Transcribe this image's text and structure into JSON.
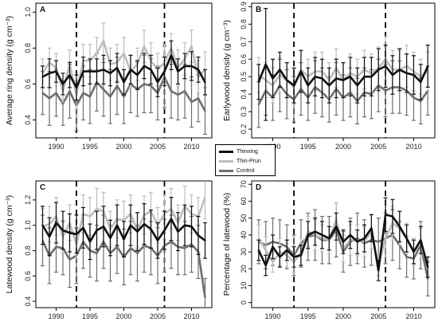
{
  "colors": {
    "Thinning": "#111111",
    "Thin-Prun": "#bdbdbd",
    "Control": "#6e6e6e"
  },
  "legend": {
    "items": [
      "Thinning",
      "Thin-Prun",
      "Control"
    ]
  },
  "chart_data": [
    {
      "type": "line",
      "panel": "A",
      "ylabel": "Average ring density (g cm⁻³)",
      "ylim": [
        0.3,
        1.05
      ],
      "yticks": [
        "0.4",
        "0.6",
        "0.8",
        "1.0"
      ],
      "xlim": [
        1987,
        2013
      ],
      "xticks": [
        "1990",
        "1995",
        "2000",
        "2005",
        "2010"
      ],
      "vlines": [
        1993,
        2006
      ],
      "x": [
        1988,
        1989,
        1990,
        1991,
        1992,
        1993,
        1994,
        1995,
        1996,
        1997,
        1998,
        1999,
        2000,
        2001,
        2002,
        2003,
        2004,
        2005,
        2006,
        2007,
        2008,
        2009,
        2010,
        2011,
        2012
      ],
      "series": [
        {
          "name": "Thinning",
          "values": [
            0.64,
            0.66,
            0.67,
            0.6,
            0.65,
            0.58,
            0.67,
            0.67,
            0.67,
            0.68,
            0.66,
            0.69,
            0.61,
            0.68,
            0.65,
            0.7,
            0.68,
            0.61,
            0.67,
            0.76,
            0.67,
            0.7,
            0.7,
            0.68,
            0.61
          ],
          "err": [
            0.06,
            0.08,
            0.06,
            0.06,
            0.07,
            0.07,
            0.08,
            0.07,
            0.07,
            0.08,
            0.07,
            0.08,
            0.07,
            0.08,
            0.08,
            0.07,
            0.08,
            0.08,
            0.08,
            0.08,
            0.07,
            0.07,
            0.08,
            0.07,
            0.07
          ]
        },
        {
          "name": "Thin-Prun",
          "values": [
            0.66,
            0.72,
            0.69,
            0.56,
            0.71,
            0.54,
            0.73,
            0.73,
            0.77,
            0.84,
            0.71,
            0.72,
            0.77,
            0.67,
            0.71,
            0.81,
            0.73,
            0.68,
            0.72,
            0.8,
            0.69,
            0.74,
            0.81,
            0.64,
            0.68
          ],
          "err": [
            0.08,
            0.08,
            0.08,
            0.06,
            0.08,
            0.08,
            0.09,
            0.09,
            0.09,
            0.1,
            0.09,
            0.1,
            0.09,
            0.09,
            0.09,
            0.09,
            0.1,
            0.09,
            0.1,
            0.08,
            0.1,
            0.09,
            0.09,
            0.09,
            0.1
          ]
        },
        {
          "name": "Control",
          "values": [
            0.55,
            0.52,
            0.55,
            0.49,
            0.56,
            0.48,
            0.55,
            0.53,
            0.61,
            0.57,
            0.53,
            0.59,
            0.53,
            0.6,
            0.57,
            0.6,
            0.59,
            0.55,
            0.64,
            0.56,
            0.54,
            0.56,
            0.5,
            0.52,
            0.45
          ],
          "err": [
            0.12,
            0.15,
            0.13,
            0.12,
            0.15,
            0.14,
            0.15,
            0.15,
            0.16,
            0.15,
            0.15,
            0.16,
            0.15,
            0.16,
            0.15,
            0.16,
            0.15,
            0.15,
            0.17,
            0.15,
            0.14,
            0.15,
            0.14,
            0.13,
            0.13
          ]
        }
      ]
    },
    {
      "type": "line",
      "panel": "B",
      "ylabel": "Earlywood density (g cm⁻³)",
      "ylim": [
        0.15,
        0.92
      ],
      "yticks": [
        "0.2",
        "0.3",
        "0.4",
        "0.5",
        "0.6",
        "0.7",
        "0.8",
        "0.9"
      ],
      "xlim": [
        1987,
        2013
      ],
      "xticks": [
        "1990",
        "1995",
        "2000",
        "2005",
        "2010"
      ],
      "vlines": [
        1993,
        2006
      ],
      "x": [
        1988,
        1989,
        1990,
        1991,
        1992,
        1993,
        1994,
        1995,
        1996,
        1997,
        1998,
        1999,
        2000,
        2001,
        2002,
        2003,
        2004,
        2005,
        2006,
        2007,
        2008,
        2009,
        2010,
        2011,
        2012
      ],
      "series": [
        {
          "name": "Thinning",
          "values": [
            0.47,
            0.57,
            0.49,
            0.54,
            0.48,
            0.45,
            0.53,
            0.45,
            0.5,
            0.49,
            0.45,
            0.49,
            0.48,
            0.5,
            0.45,
            0.5,
            0.5,
            0.54,
            0.56,
            0.51,
            0.54,
            0.52,
            0.51,
            0.47,
            0.56
          ],
          "err": [
            0.1,
            0.32,
            0.11,
            0.1,
            0.1,
            0.1,
            0.12,
            0.1,
            0.11,
            0.11,
            0.1,
            0.11,
            0.1,
            0.11,
            0.1,
            0.11,
            0.11,
            0.12,
            0.12,
            0.11,
            0.12,
            0.11,
            0.11,
            0.1,
            0.12
          ]
        },
        {
          "name": "Thin-Prun",
          "values": [
            0.51,
            0.48,
            0.45,
            0.51,
            0.48,
            0.44,
            0.54,
            0.5,
            0.53,
            0.53,
            0.48,
            0.55,
            0.48,
            0.52,
            0.5,
            0.54,
            0.52,
            0.55,
            0.6,
            0.54,
            0.54,
            0.56,
            0.53,
            0.5,
            0.53
          ],
          "err": [
            0.1,
            0.1,
            0.1,
            0.1,
            0.1,
            0.1,
            0.11,
            0.1,
            0.11,
            0.11,
            0.1,
            0.11,
            0.1,
            0.11,
            0.1,
            0.11,
            0.11,
            0.12,
            0.13,
            0.11,
            0.11,
            0.12,
            0.11,
            0.1,
            0.11
          ]
        },
        {
          "name": "Control",
          "values": [
            0.34,
            0.42,
            0.38,
            0.45,
            0.4,
            0.37,
            0.43,
            0.38,
            0.44,
            0.41,
            0.37,
            0.43,
            0.38,
            0.41,
            0.36,
            0.41,
            0.4,
            0.45,
            0.42,
            0.44,
            0.44,
            0.42,
            0.38,
            0.36,
            0.42
          ],
          "err": [
            0.13,
            0.14,
            0.13,
            0.15,
            0.14,
            0.13,
            0.15,
            0.13,
            0.15,
            0.14,
            0.13,
            0.15,
            0.13,
            0.14,
            0.13,
            0.14,
            0.14,
            0.15,
            0.15,
            0.15,
            0.15,
            0.14,
            0.13,
            0.13,
            0.14
          ]
        }
      ]
    },
    {
      "type": "line",
      "panel": "C",
      "ylabel": "Latewood density (g cm⁻³)",
      "ylim": [
        0.35,
        1.35
      ],
      "yticks": [
        "0.4",
        "0.6",
        "0.8",
        "1.0",
        "1.2"
      ],
      "xlim": [
        1987,
        2013
      ],
      "xticks": [
        "1990",
        "1995",
        "2000",
        "2005",
        "2010"
      ],
      "vlines": [
        1993,
        2006
      ],
      "x": [
        1988,
        1989,
        1990,
        1991,
        1992,
        1993,
        1994,
        1995,
        1996,
        1997,
        1998,
        1999,
        2000,
        2001,
        2002,
        2003,
        2004,
        2005,
        2006,
        2007,
        2008,
        2009,
        2010,
        2011,
        2012
      ],
      "series": [
        {
          "name": "Thinning",
          "values": [
            1.0,
            0.91,
            1.02,
            0.96,
            0.94,
            0.93,
            0.98,
            0.87,
            0.96,
            0.99,
            0.9,
            1.0,
            0.89,
            1.0,
            0.95,
            1.01,
            0.97,
            0.88,
            0.96,
            1.05,
            0.95,
            1.0,
            0.99,
            0.92,
            0.88
          ],
          "err": [
            0.15,
            0.15,
            0.16,
            0.15,
            0.15,
            0.15,
            0.16,
            0.14,
            0.15,
            0.16,
            0.14,
            0.16,
            0.14,
            0.16,
            0.15,
            0.16,
            0.15,
            0.14,
            0.15,
            0.17,
            0.15,
            0.16,
            0.16,
            0.15,
            0.14
          ]
        },
        {
          "name": "Thin-Prun",
          "values": [
            0.99,
            1.01,
            1.07,
            0.91,
            1.02,
            0.85,
            1.09,
            1.07,
            1.13,
            1.11,
            0.97,
            1.05,
            1.04,
            1.09,
            0.96,
            1.08,
            1.11,
            1.0,
            1.09,
            1.13,
            1.02,
            1.15,
            1.09,
            1.07,
            1.22
          ],
          "err": [
            0.14,
            0.14,
            0.15,
            0.13,
            0.14,
            0.12,
            0.15,
            0.15,
            0.16,
            0.15,
            0.14,
            0.15,
            0.15,
            0.15,
            0.14,
            0.15,
            0.15,
            0.14,
            0.15,
            0.16,
            0.14,
            0.16,
            0.15,
            0.15,
            0.17
          ]
        },
        {
          "name": "Control",
          "values": [
            0.88,
            0.76,
            0.83,
            0.82,
            0.73,
            0.76,
            0.87,
            0.8,
            0.78,
            0.87,
            0.78,
            0.83,
            0.75,
            0.82,
            0.78,
            0.84,
            0.82,
            0.76,
            0.84,
            0.87,
            0.83,
            0.82,
            0.85,
            0.79,
            0.43
          ],
          "err": [
            0.2,
            0.22,
            0.2,
            0.21,
            0.22,
            0.22,
            0.21,
            0.21,
            0.22,
            0.21,
            0.22,
            0.21,
            0.22,
            0.21,
            0.22,
            0.21,
            0.21,
            0.22,
            0.21,
            0.21,
            0.22,
            0.21,
            0.22,
            0.21,
            0.15
          ]
        }
      ]
    },
    {
      "type": "line",
      "panel": "D",
      "ylabel": "Percentage of latewood (%)",
      "ylim": [
        -3,
        72
      ],
      "yticks": [
        "0",
        "10",
        "20",
        "30",
        "40",
        "50",
        "60",
        "70"
      ],
      "xlim": [
        1987,
        2013
      ],
      "xticks": [
        "1990",
        "1995",
        "2000",
        "2005",
        "2010"
      ],
      "vlines": [
        1993,
        2006
      ],
      "x": [
        1988,
        1989,
        1990,
        1991,
        1992,
        1993,
        1994,
        1995,
        1996,
        1997,
        1998,
        1999,
        2000,
        2001,
        2002,
        2003,
        2004,
        2005,
        2006,
        2007,
        2008,
        2009,
        2010,
        2011,
        2012
      ],
      "series": [
        {
          "name": "Thinning",
          "values": [
            31,
            22,
            33,
            27,
            31,
            27,
            28,
            40,
            42,
            40,
            38,
            45,
            36,
            40,
            36,
            38,
            44,
            19,
            52,
            51,
            45,
            38,
            30,
            37,
            21
          ],
          "err": [
            6,
            6,
            7,
            6,
            6,
            6,
            6,
            8,
            8,
            8,
            7,
            8,
            7,
            8,
            7,
            8,
            8,
            6,
            10,
            10,
            9,
            8,
            7,
            8,
            6
          ]
        },
        {
          "name": "Thin-Prun",
          "values": [
            38,
            31,
            24,
            30,
            28,
            24,
            30,
            42,
            40,
            38,
            37,
            49,
            32,
            37,
            37,
            36,
            42,
            22,
            38,
            47,
            44,
            38,
            30,
            35,
            21
          ],
          "err": [
            8,
            8,
            6,
            8,
            7,
            6,
            8,
            9,
            9,
            8,
            8,
            10,
            8,
            9,
            9,
            9,
            10,
            6,
            9,
            10,
            10,
            9,
            8,
            9,
            6
          ]
        },
        {
          "name": "Control",
          "values": [
            36,
            34,
            36,
            35,
            33,
            28,
            35,
            39,
            40,
            37,
            37,
            43,
            30,
            36,
            38,
            35,
            37,
            36,
            38,
            40,
            34,
            27,
            26,
            34,
            14
          ],
          "err": [
            13,
            14,
            14,
            14,
            13,
            12,
            14,
            14,
            15,
            14,
            14,
            16,
            12,
            14,
            15,
            14,
            15,
            14,
            15,
            15,
            14,
            12,
            12,
            14,
            10
          ]
        }
      ]
    }
  ]
}
